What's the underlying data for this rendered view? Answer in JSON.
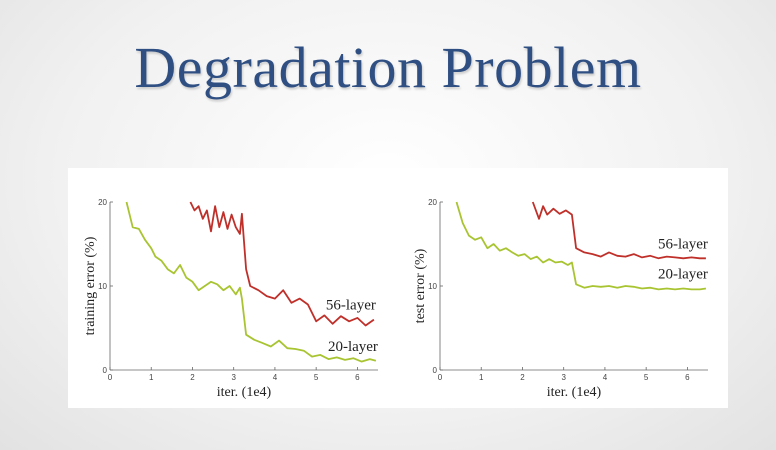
{
  "slide": {
    "title": "Degradation Problem"
  },
  "colors": {
    "layer56": "#c0302a",
    "layer20": "#a8c431",
    "title": "#2f4f83"
  },
  "chart_data": [
    {
      "type": "line",
      "xlabel": "iter. (1e4)",
      "ylabel": "training error (%)",
      "xlim": [
        0,
        6.5
      ],
      "ylim": [
        0,
        20
      ],
      "xticks": [
        "0",
        "1",
        "2",
        "3",
        "4",
        "5",
        "6"
      ],
      "yticks": [
        "0",
        "10",
        "20"
      ],
      "grid": false,
      "series": [
        {
          "name": "56-layer",
          "x": [
            1.95,
            2.05,
            2.15,
            2.25,
            2.35,
            2.45,
            2.55,
            2.65,
            2.75,
            2.85,
            2.95,
            3.05,
            3.15,
            3.2,
            3.3,
            3.4,
            3.6,
            3.8,
            4.0,
            4.2,
            4.4,
            4.6,
            4.8,
            5.0,
            5.2,
            5.4,
            5.6,
            5.8,
            6.0,
            6.2,
            6.4
          ],
          "y": [
            20,
            19,
            19.5,
            18,
            19,
            16.5,
            19.5,
            17,
            18.8,
            16.8,
            18.5,
            17,
            16.2,
            18.6,
            12,
            10,
            9.5,
            8.8,
            8.5,
            9.5,
            8,
            8.5,
            7.8,
            5.8,
            6.5,
            5.5,
            6.4,
            5.8,
            6.2,
            5.3,
            6.0
          ]
        },
        {
          "name": "20-layer",
          "x": [
            0.4,
            0.55,
            0.7,
            0.85,
            1.0,
            1.1,
            1.25,
            1.4,
            1.55,
            1.7,
            1.85,
            2.0,
            2.15,
            2.3,
            2.45,
            2.6,
            2.75,
            2.9,
            3.05,
            3.15,
            3.2,
            3.3,
            3.5,
            3.7,
            3.9,
            4.1,
            4.3,
            4.5,
            4.7,
            4.9,
            5.1,
            5.3,
            5.5,
            5.7,
            5.9,
            6.1,
            6.3,
            6.45
          ],
          "y": [
            20,
            17,
            16.8,
            15.5,
            14.5,
            13.5,
            13,
            12,
            11.5,
            12.5,
            11,
            10.5,
            9.5,
            10,
            10.5,
            10.2,
            9.5,
            10,
            9,
            9.8,
            8.5,
            4.2,
            3.6,
            3.2,
            2.8,
            3.5,
            2.6,
            2.5,
            2.3,
            1.6,
            1.8,
            1.3,
            1.5,
            1.2,
            1.4,
            1.0,
            1.3,
            1.1
          ]
        }
      ]
    },
    {
      "type": "line",
      "xlabel": "iter. (1e4)",
      "ylabel": "test error (%)",
      "xlim": [
        0,
        6.5
      ],
      "ylim": [
        0,
        20
      ],
      "xticks": [
        "0",
        "1",
        "2",
        "3",
        "4",
        "5",
        "6"
      ],
      "yticks": [
        "0",
        "10",
        "20"
      ],
      "grid": false,
      "series": [
        {
          "name": "56-layer",
          "x": [
            2.25,
            2.4,
            2.5,
            2.6,
            2.75,
            2.9,
            3.05,
            3.2,
            3.3,
            3.5,
            3.7,
            3.9,
            4.1,
            4.3,
            4.5,
            4.7,
            4.9,
            5.1,
            5.3,
            5.5,
            5.7,
            5.9,
            6.1,
            6.3,
            6.45
          ],
          "y": [
            20,
            18,
            19.5,
            18.5,
            19.2,
            18.6,
            19,
            18.5,
            14.5,
            14,
            13.8,
            13.5,
            14.0,
            13.6,
            13.5,
            13.8,
            13.4,
            13.6,
            13.3,
            13.5,
            13.4,
            13.3,
            13.4,
            13.3,
            13.3
          ]
        },
        {
          "name": "20-layer",
          "x": [
            0.4,
            0.55,
            0.7,
            0.85,
            1.0,
            1.15,
            1.3,
            1.45,
            1.6,
            1.75,
            1.9,
            2.05,
            2.2,
            2.35,
            2.5,
            2.65,
            2.8,
            2.95,
            3.1,
            3.2,
            3.3,
            3.5,
            3.7,
            3.9,
            4.1,
            4.3,
            4.5,
            4.7,
            4.9,
            5.1,
            5.3,
            5.5,
            5.7,
            5.9,
            6.1,
            6.3,
            6.45
          ],
          "y": [
            20,
            17.5,
            16,
            15.5,
            15.8,
            14.5,
            15,
            14.2,
            14.5,
            14,
            13.6,
            13.8,
            13.2,
            13.5,
            12.8,
            13.2,
            12.8,
            12.9,
            12.5,
            12.8,
            10.2,
            9.8,
            10.0,
            9.9,
            10.0,
            9.8,
            10.0,
            9.9,
            9.7,
            9.8,
            9.6,
            9.7,
            9.6,
            9.7,
            9.6,
            9.6,
            9.7
          ]
        }
      ]
    }
  ]
}
